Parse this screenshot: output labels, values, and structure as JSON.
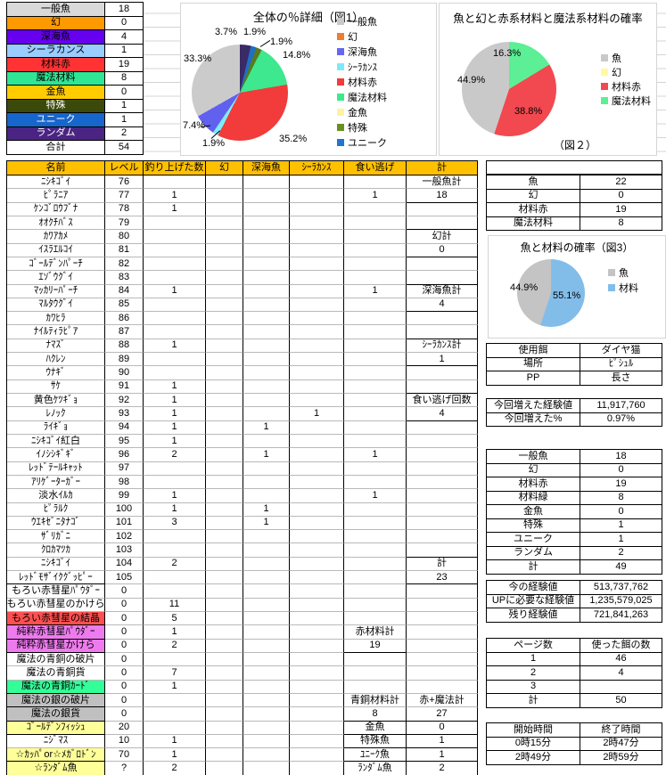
{
  "left_summary": {
    "rows": [
      {
        "label": "一般魚",
        "value": "18",
        "bg": "#D9D9D9",
        "fg": "#000000"
      },
      {
        "label": "幻",
        "value": "0",
        "bg": "#FF9900",
        "fg": "#000000"
      },
      {
        "label": "深海魚",
        "value": "4",
        "bg": "#6600EE",
        "fg": "#000000"
      },
      {
        "label": "シーラカンス",
        "value": "1",
        "bg": "#99CCFF",
        "fg": "#000000"
      },
      {
        "label": "材料赤",
        "value": "19",
        "bg": "#FF3333",
        "fg": "#000000"
      },
      {
        "label": "魔法材料",
        "value": "8",
        "bg": "#2EE694",
        "fg": "#000000"
      },
      {
        "label": "金魚",
        "value": "0",
        "bg": "#FFCC00",
        "fg": "#000000"
      },
      {
        "label": "特殊",
        "value": "1",
        "bg": "#3B4A0A",
        "fg": "#FFFFFF"
      },
      {
        "label": "ユニーク",
        "value": "1",
        "bg": "#1666CC",
        "fg": "#FFFFFF"
      },
      {
        "label": "ランダム",
        "value": "2",
        "bg": "#4B2483",
        "fg": "#FFFFFF"
      },
      {
        "label": "合計",
        "value": "54",
        "bg": "#FFFFFF",
        "fg": "#000000"
      }
    ]
  },
  "chart_data": [
    {
      "type": "pie",
      "title": "全体の％詳細（図1）",
      "legend_position": "right",
      "slices": [
        {
          "label": "ランダム",
          "value": 3.7,
          "pct": "3.7%",
          "color": "#3A2A66"
        },
        {
          "label": "ユニーク",
          "value": 1.9,
          "pct": "1.9%",
          "color": "#1F6FC4"
        },
        {
          "label": "特殊",
          "value": 1.9,
          "pct": "1.9%",
          "color": "#5A7A1E"
        },
        {
          "label": "魔法材料",
          "value": 14.8,
          "pct": "14.8%",
          "color": "#3DE88E"
        },
        {
          "label": "材料赤",
          "value": 35.2,
          "pct": "35.2%",
          "color": "#F23B3B"
        },
        {
          "label": "シーラカンス",
          "value": 1.9,
          "pct": "1.9%",
          "color": "#7FEDF7"
        },
        {
          "label": "深海魚",
          "value": 7.4,
          "pct": "7.4%",
          "color": "#6161F0"
        },
        {
          "label": "一般魚",
          "value": 33.3,
          "pct": "33.3%",
          "color": "#CBCBCB"
        }
      ],
      "legend": [
        {
          "label": "一般魚",
          "color": "#C9C9C9"
        },
        {
          "label": "幻",
          "color": "#ED7D31"
        },
        {
          "label": "深海魚",
          "color": "#6666F0"
        },
        {
          "label": "ｼｰﾗｶﾝｽ",
          "color": "#7FE9FA"
        },
        {
          "label": "材料赤",
          "color": "#F23B3B"
        },
        {
          "label": "魔法材料",
          "color": "#3DE88E"
        },
        {
          "label": "金魚",
          "color": "#FFF2A0"
        },
        {
          "label": "特殊",
          "color": "#6B8E23"
        },
        {
          "label": "ユニーク",
          "color": "#1F75CF"
        }
      ]
    },
    {
      "type": "pie",
      "title": "魚と幻と赤系材料と魔法系材料の確率",
      "caption": "（図２）",
      "legend_position": "right",
      "slices": [
        {
          "label": "魔法材料",
          "value": 16.3,
          "pct": "16.3%",
          "color": "#5CEF95"
        },
        {
          "label": "材料赤",
          "value": 38.8,
          "pct": "38.8%",
          "color": "#F2484F"
        },
        {
          "label": "魚",
          "value": 44.9,
          "pct": "44.9%",
          "color": "#C9C9C9"
        }
      ],
      "legend": [
        {
          "label": "魚",
          "color": "#C9C9C9"
        },
        {
          "label": "幻",
          "color": "#FFFA9E"
        },
        {
          "label": "材料赤",
          "color": "#F2484F"
        },
        {
          "label": "魔法材料",
          "color": "#5CEF95"
        }
      ]
    },
    {
      "type": "pie",
      "title": "魚と材料の確率（図3）",
      "legend_position": "right",
      "slices": [
        {
          "label": "材料",
          "value": 55.1,
          "pct": "55.1%",
          "color": "#82BDEA"
        },
        {
          "label": "魚",
          "value": 44.9,
          "pct": "44.9%",
          "color": "#C4C4C4"
        }
      ],
      "legend": [
        {
          "label": "魚",
          "color": "#C4C4C4"
        },
        {
          "label": "材料",
          "color": "#82BDEA"
        }
      ]
    }
  ],
  "main_table": {
    "headers": [
      "名前",
      "レベル",
      "釣り上げた数",
      "幻",
      "深海魚",
      "ｼｰﾗｶﾝｽ",
      "食い逃げ",
      "計"
    ],
    "header_bg": "#FFC000",
    "rows": [
      {
        "name": "ﾆｼｷｺﾞｲ",
        "level": "76",
        "total": "一般魚計"
      },
      {
        "name": "ﾋﾟﾗﾆｱ",
        "level": "77",
        "count": "1",
        "missed": "1",
        "total": "18"
      },
      {
        "name": "ｹﾝｺﾞﾛｳﾌﾞﾅ",
        "level": "78",
        "count": "1"
      },
      {
        "name": "ｵｵｸﾁﾊﾞｽ",
        "level": "79"
      },
      {
        "name": "ｶﾜｱｶﾒ",
        "level": "80",
        "total": "幻計"
      },
      {
        "name": "ｲｽﾗｴﾙｺｲ",
        "level": "81",
        "total": "0"
      },
      {
        "name": "ｺﾞｰﾙﾃﾞﾝﾊﾟｰﾁ",
        "level": "82"
      },
      {
        "name": "ｴｿﾞｳｸﾞｲ",
        "level": "83"
      },
      {
        "name": "ﾏｯｶﾘｰﾊﾟｰﾁ",
        "level": "84",
        "count": "1",
        "missed": "1",
        "total": "深海魚計"
      },
      {
        "name": "ﾏﾙﾀｳｸﾞｲ",
        "level": "85",
        "total": "4"
      },
      {
        "name": "ｶﾜﾋﾗ",
        "level": "86"
      },
      {
        "name": "ﾅｲﾙﾃｨﾗﾋﾟｱ",
        "level": "87"
      },
      {
        "name": "ﾅﾏｽﾞ",
        "level": "88",
        "count": "1",
        "total": "ｼｰﾗｶﾝｽ計"
      },
      {
        "name": "ﾊｸﾚﾝ",
        "level": "89",
        "total": "1"
      },
      {
        "name": "ｳﾅｷﾞ",
        "level": "90"
      },
      {
        "name": "ｻｹ",
        "level": "91",
        "count": "1"
      },
      {
        "name": "黄色ｹﾂｷﾞｮ",
        "level": "92",
        "count": "1",
        "total": "食い逃げ回数"
      },
      {
        "name": "ﾚﾉｯｸ",
        "level": "93",
        "count": "1",
        "coel": "1",
        "total": "4"
      },
      {
        "name": "ﾗｲｷﾞｮ",
        "level": "94",
        "count": "1",
        "deep": "1"
      },
      {
        "name": "ﾆｼｷｺﾞｲ紅白",
        "level": "95",
        "count": "1"
      },
      {
        "name": "ｲﾉｼｼｷﾞｷﾞ",
        "level": "96",
        "count": "2",
        "deep": "1",
        "missed": "1"
      },
      {
        "name": "ﾚｯﾄﾞﾃｰﾙｷｬｯﾄ",
        "level": "97"
      },
      {
        "name": "ｱﾘｹﾞｰﾀｰｶﾞｰ",
        "level": "98"
      },
      {
        "name": "淡水ｲﾙｶ",
        "level": "99",
        "count": "1",
        "missed": "1"
      },
      {
        "name": "ﾋﾟﾗﾙｸ",
        "level": "100",
        "count": "1",
        "deep": "1"
      },
      {
        "name": "ｳｴｷｾﾞﾆﾀﾅｺﾞ",
        "level": "101",
        "count": "3",
        "deep": "1"
      },
      {
        "name": "ｻﾞﾘｶﾞﾆ",
        "level": "102"
      },
      {
        "name": "ｸﾛｶﾏﾂｶ",
        "level": "103"
      },
      {
        "name": "ﾆｼｷｺﾞｲ",
        "level": "104",
        "count": "2",
        "total": "計"
      },
      {
        "name": "ﾚｯﾄﾞﾓｻﾞｲｸｸﾞｯﾋﾟｰ",
        "level": "105",
        "total": "23"
      },
      {
        "name": "もろい赤彗星ﾊﾟｳﾀﾞｰ",
        "level": "0"
      },
      {
        "name": "もろい赤彗星のかけら",
        "level": "0",
        "count": "11"
      },
      {
        "name": "もろい赤彗星の結晶",
        "level": "0",
        "count": "5",
        "bg": "#FF5050"
      },
      {
        "name": "純粋赤彗星ﾊﾟｳﾀﾞｰ",
        "level": "0",
        "count": "1",
        "bg": "#EE7BEE",
        "missed": "赤材料計"
      },
      {
        "name": "純粋赤彗星かけら",
        "level": "0",
        "count": "2",
        "bg": "#EE7BEE",
        "missed": "19"
      },
      {
        "name": "魔法の青銅の破片",
        "level": "0"
      },
      {
        "name": "魔法の青銅貨",
        "level": "0",
        "count": "7"
      },
      {
        "name": "魔法の青銅ｶｰﾄﾞ",
        "level": "0",
        "count": "1",
        "bg": "#33FF99"
      },
      {
        "name": "魔法の銀の破片",
        "level": "0",
        "bg": "#C0C0C0",
        "missed": "青銅材料計",
        "total": "赤+魔法計"
      },
      {
        "name": "魔法の銀貨",
        "level": "0",
        "bg": "#C0C0C0",
        "missed": "8",
        "total": "27"
      },
      {
        "name": "ｺﾞｰﾙﾃﾞﾝﾌｨｯｼｭ",
        "level": "20",
        "bg": "#FFFF99",
        "missed": "金魚",
        "total": "0"
      },
      {
        "name": "ﾆｼﾞﾏｽ",
        "level": "10",
        "count": "1",
        "missed": "特殊魚",
        "total": "1"
      },
      {
        "name": "☆ｶｯﾊﾟor☆ﾒｶﾞﾛﾄﾞﾝ",
        "level": "70",
        "count": "1",
        "bg": "#FFFF99",
        "missed": "ﾕﾆｰｸ魚",
        "total": "1"
      },
      {
        "name": "☆ﾗﾝﾀﾞﾑ魚",
        "level": "?",
        "count": "2",
        "bg": "#FFFF99",
        "missed": "ﾗﾝﾀﾞﾑ魚",
        "total": "2"
      }
    ]
  },
  "right_panel": {
    "counts_top": [
      [
        "魚",
        "22"
      ],
      [
        "幻",
        "0"
      ],
      [
        "材料赤",
        "19"
      ],
      [
        "魔法材料",
        "8"
      ]
    ],
    "info": [
      [
        "使用餌",
        "ダイヤ猫"
      ],
      [
        "場所",
        "ﾋﾟｼｭﾙ"
      ],
      [
        "PP",
        "長さ"
      ]
    ],
    "exp_gain": [
      [
        "今回増えた経験値",
        "11,917,760"
      ],
      [
        "今回増えた%",
        "0.97%"
      ]
    ],
    "counts_bottom": [
      [
        "一般魚",
        "18"
      ],
      [
        "幻",
        "0"
      ],
      [
        "材料赤",
        "19"
      ],
      [
        "材料緑",
        "8"
      ],
      [
        "金魚",
        "0"
      ],
      [
        "特殊",
        "1"
      ],
      [
        "ユニーク",
        "1"
      ],
      [
        "ランダム",
        "2"
      ],
      [
        "計",
        "49"
      ]
    ],
    "experience": [
      [
        "今の経験値",
        "513,737,762"
      ],
      [
        "UPに必要な経験値",
        "1,235,579,025"
      ],
      [
        "残り経験値",
        "721,841,263"
      ]
    ],
    "pages": [
      [
        "ページ数",
        "使った餌の数"
      ],
      [
        "1",
        "46"
      ],
      [
        "2",
        "4"
      ],
      [
        "3",
        ""
      ],
      [
        "計",
        "50"
      ]
    ],
    "times": [
      [
        "開始時間",
        "終了時間"
      ],
      [
        "0時15分",
        "2時47分"
      ],
      [
        "2時49分",
        "2時59分"
      ]
    ]
  }
}
